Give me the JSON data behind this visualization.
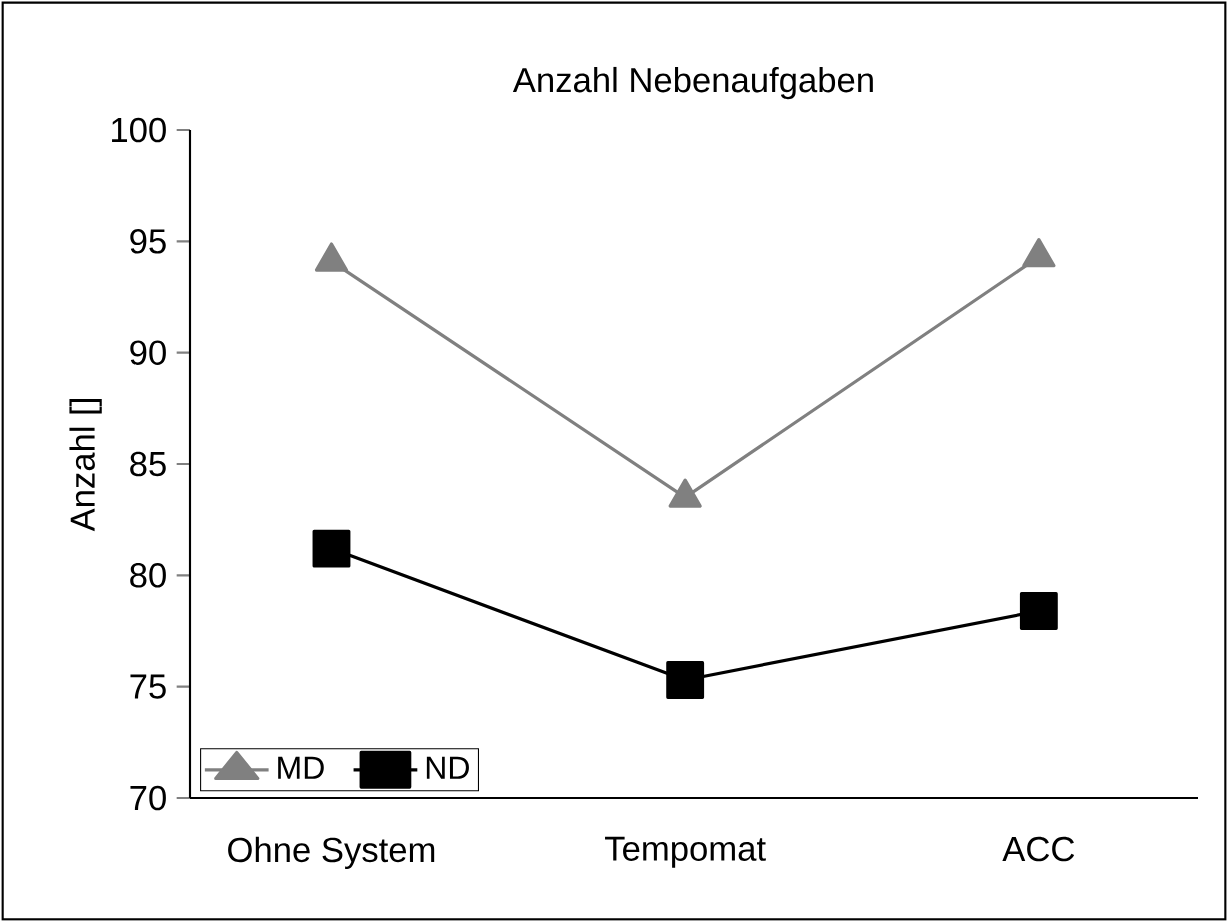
{
  "chart_data": {
    "type": "line",
    "title": "Anzahl Nebenaufgaben",
    "ylabel": "Anzahl []",
    "categories": [
      "Ohne System",
      "Tempomat",
      "ACC"
    ],
    "series": [
      {
        "name": "MD",
        "color": "#808080",
        "marker": "triangle",
        "values": [
          94.1,
          83.5,
          94.3
        ]
      },
      {
        "name": "ND",
        "color": "#000000",
        "marker": "square",
        "values": [
          81.2,
          75.3,
          78.4
        ]
      }
    ],
    "ylim": [
      70,
      100
    ],
    "yticks": [
      70,
      75,
      80,
      85,
      90,
      95,
      100
    ],
    "legend": "bottom left"
  }
}
